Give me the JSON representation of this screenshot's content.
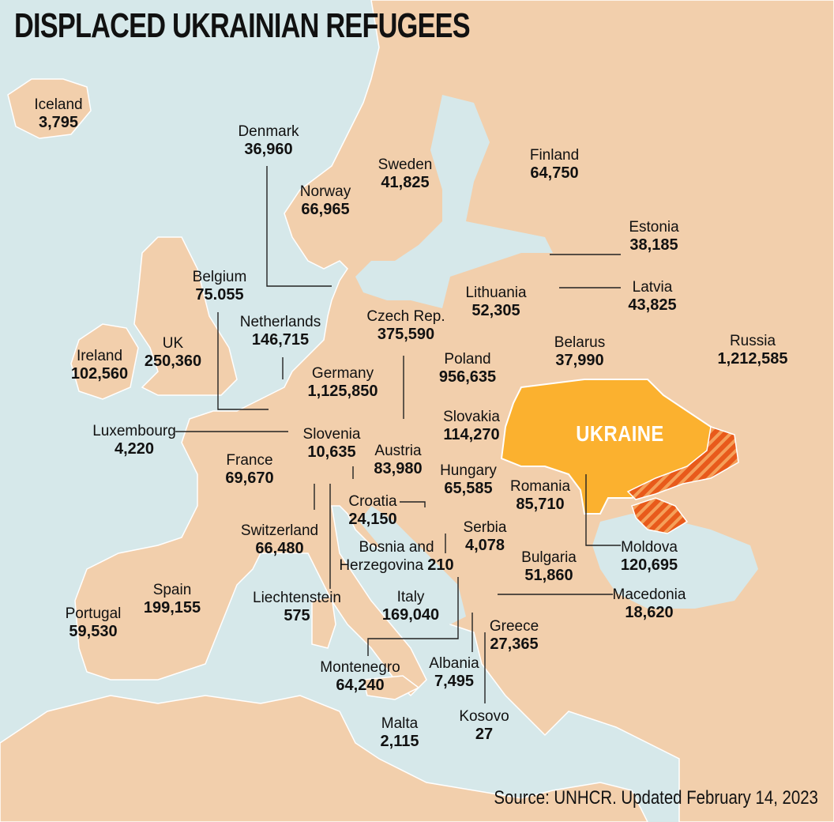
{
  "title": "DISPLACED UKRAINIAN REFUGEES",
  "source": "Source: UNHCR. Updated February 14, 2023",
  "highlight_label": "UKRAINE",
  "colors": {
    "sea": "#d6e8ea",
    "land": "#f2cfac",
    "ukraine": "#fbb12f",
    "occupied": "#e85a1b"
  },
  "countries": {
    "iceland": {
      "name": "Iceland",
      "value": "3,795"
    },
    "denmark": {
      "name": "Denmark",
      "value": "36,960"
    },
    "norway": {
      "name": "Norway",
      "value": "66,965"
    },
    "sweden": {
      "name": "Sweden",
      "value": "41,825"
    },
    "finland": {
      "name": "Finland",
      "value": "64,750"
    },
    "estonia": {
      "name": "Estonia",
      "value": "38,185"
    },
    "latvia": {
      "name": "Latvia",
      "value": "43,825"
    },
    "lithuania": {
      "name": "Lithuania",
      "value": "52,305"
    },
    "belgium": {
      "name": "Belgium",
      "value": "75.055"
    },
    "netherlands": {
      "name": "Netherlands",
      "value": "146,715"
    },
    "czech": {
      "name": "Czech Rep.",
      "value": "375,590"
    },
    "belarus": {
      "name": "Belarus",
      "value": "37,990"
    },
    "russia": {
      "name": "Russia",
      "value": "1,212,585"
    },
    "ireland": {
      "name": "Ireland",
      "value": "102,560"
    },
    "uk": {
      "name": "UK",
      "value": "250,360"
    },
    "germany": {
      "name": "Germany",
      "value": "1,125,850"
    },
    "poland": {
      "name": "Poland",
      "value": "956,635"
    },
    "luxembourg": {
      "name": "Luxembourg",
      "value": "4,220"
    },
    "slovenia": {
      "name": "Slovenia",
      "value": "10,635"
    },
    "slovakia": {
      "name": "Slovakia",
      "value": "114,270"
    },
    "france": {
      "name": "France",
      "value": "69,670"
    },
    "austria": {
      "name": "Austria",
      "value": "83,980"
    },
    "hungary": {
      "name": "Hungary",
      "value": "65,585"
    },
    "romania": {
      "name": "Romania",
      "value": "85,710"
    },
    "croatia": {
      "name": "Croatia",
      "value": "24,150"
    },
    "switzerland": {
      "name": "Switzerland",
      "value": "66,480"
    },
    "serbia": {
      "name": "Serbia",
      "value": "4,078"
    },
    "bosnia": {
      "name1": "Bosnia and",
      "name2": "Herzegovina",
      "value": "210"
    },
    "moldova": {
      "name": "Moldova",
      "value": "120,695"
    },
    "bulgaria": {
      "name": "Bulgaria",
      "value": "51,860"
    },
    "spain": {
      "name": "Spain",
      "value": "199,155"
    },
    "liechtenstein": {
      "name": "Liechtenstein",
      "value": "575"
    },
    "italy": {
      "name": "Italy",
      "value": "169,040"
    },
    "macedonia": {
      "name": "Macedonia",
      "value": "18,620"
    },
    "portugal": {
      "name": "Portugal",
      "value": "59,530"
    },
    "greece": {
      "name": "Greece",
      "value": "27,365"
    },
    "montenegro": {
      "name": "Montenegro",
      "value": "64,240"
    },
    "albania": {
      "name": "Albania",
      "value": "7,495"
    },
    "kosovo": {
      "name": "Kosovo",
      "value": "27"
    },
    "malta": {
      "name": "Malta",
      "value": "2,115"
    }
  }
}
